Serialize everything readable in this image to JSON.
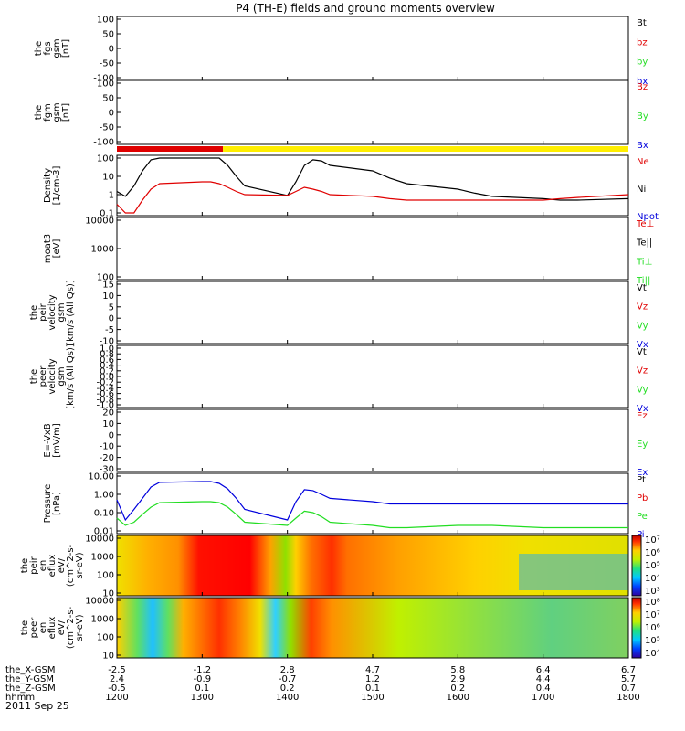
{
  "title": "P4 (TH-E) fields and ground moments overview",
  "date_label": "2011 Sep 25",
  "time_axis": {
    "row_labels": [
      "the_X-GSM",
      "the_Y-GSM",
      "the_Z-GSM",
      "hhmm"
    ],
    "ticks": [
      {
        "x": "-2.5",
        "y": "2.4",
        "z": "-0.5",
        "hhmm": "1200"
      },
      {
        "x": "-1.2",
        "y": "-0.9",
        "z": "0.1",
        "hhmm": "1300"
      },
      {
        "x": "2.8",
        "y": "-0.7",
        "z": "0.2",
        "hhmm": "1400"
      },
      {
        "x": "4.7",
        "y": "1.2",
        "z": "0.1",
        "hhmm": "1500"
      },
      {
        "x": "5.8",
        "y": "2.9",
        "z": "0.2",
        "hhmm": "1600"
      },
      {
        "x": "6.4",
        "y": "4.4",
        "z": "0.4",
        "hhmm": "1700"
      },
      {
        "x": "6.7",
        "y": "5.7",
        "z": "0.7",
        "hhmm": "1800"
      }
    ],
    "range": [
      1200,
      1800
    ]
  },
  "colors": {
    "black": "#000000",
    "red": "#e00000",
    "green": "#22dd22",
    "blue": "#0000dd",
    "yellow": "#ffee00"
  },
  "panels": [
    {
      "ylabel": [
        "the",
        "fgs",
        "gsm",
        "[nT]"
      ],
      "ticks": [
        "100",
        "50",
        "0",
        "-50",
        "-100"
      ],
      "legend": [
        {
          "t": "Bt",
          "c": "black"
        },
        {
          "t": "bz",
          "c": "red"
        },
        {
          "t": "by",
          "c": "green"
        },
        {
          "t": "bx",
          "c": "blue"
        }
      ]
    },
    {
      "ylabel": [
        "the",
        "fgm",
        "gsm",
        "[nT]"
      ],
      "ticks": [
        "100",
        "50",
        "0",
        "-50",
        "-100"
      ],
      "legend": [
        {
          "t": "Bz",
          "c": "red"
        },
        {
          "t": "By",
          "c": "green"
        },
        {
          "t": "Bx",
          "c": "blue"
        }
      ]
    },
    {
      "ylabel": [
        "Density",
        "[1/cm-3]"
      ],
      "ticks": [
        "100",
        "10",
        "1",
        "0.1"
      ],
      "legend": [
        {
          "t": "Ne",
          "c": "red"
        },
        {
          "t": "Ni",
          "c": "black"
        },
        {
          "t": "Npot",
          "c": "blue"
        }
      ]
    },
    {
      "ylabel": [
        "moat3",
        "[eV]"
      ],
      "ticks": [
        "10000",
        "1000",
        "100"
      ],
      "legend": [
        {
          "t": "Te⊥",
          "c": "red"
        },
        {
          "t": "Te||",
          "c": "black"
        },
        {
          "t": "Ti⊥",
          "c": "green"
        },
        {
          "t": "Ti||",
          "c": "green"
        }
      ]
    },
    {
      "ylabel": [
        "the",
        "peir",
        "velocity",
        "gsm",
        "[km/s (All Qs)]"
      ],
      "ticks": [
        "15",
        "10",
        "5",
        "0",
        "-5",
        "-10"
      ],
      "legend": [
        {
          "t": "Vt",
          "c": "black"
        },
        {
          "t": "Vz",
          "c": "red"
        },
        {
          "t": "Vy",
          "c": "green"
        },
        {
          "t": "Vx",
          "c": "blue"
        }
      ]
    },
    {
      "ylabel": [
        "the",
        "peer",
        "velocity",
        "gsm",
        "[km/s (All Qs)]"
      ],
      "ticks": [
        "1.0",
        "0.8",
        "0.6",
        "0.4",
        "0.2",
        "0.0",
        "-0.2",
        "-0.4",
        "-0.6",
        "-0.8",
        "-1.0"
      ],
      "legend": [
        {
          "t": "Vt",
          "c": "black"
        },
        {
          "t": "Vz",
          "c": "red"
        },
        {
          "t": "Vy",
          "c": "green"
        },
        {
          "t": "Vx",
          "c": "blue"
        }
      ]
    },
    {
      "ylabel": [
        "E=-VxB",
        "[mV/m]"
      ],
      "ticks": [
        "20",
        "10",
        "0",
        "-10",
        "-20",
        "-30"
      ],
      "legend": [
        {
          "t": "Ez",
          "c": "red"
        },
        {
          "t": "Ey",
          "c": "green"
        },
        {
          "t": "Ex",
          "c": "blue"
        }
      ]
    },
    {
      "ylabel": [
        "Pressure",
        "[nPa]"
      ],
      "ticks": [
        "10.00",
        "1.00",
        "0.10",
        "0.01"
      ],
      "legend": [
        {
          "t": "Pt",
          "c": "black"
        },
        {
          "t": "Pb",
          "c": "red"
        },
        {
          "t": "Pe",
          "c": "green"
        },
        {
          "t": "Pi",
          "c": "blue"
        }
      ]
    },
    {
      "ylabel": [
        "the",
        "peir",
        "en",
        "eflux",
        "eV/",
        "(cm^2-s-",
        "sr-eV)"
      ],
      "ticks": [
        "10000",
        "1000",
        "100",
        "10"
      ],
      "cbar": [
        "10⁷",
        "10⁶",
        "10⁵",
        "10⁴",
        "10³"
      ]
    },
    {
      "ylabel": [
        "the",
        "peer",
        "en",
        "eflux",
        "eV/",
        "(cm^2-s-",
        "sr-eV)"
      ],
      "ticks": [
        "10000",
        "1000",
        "100",
        "10"
      ],
      "cbar": [
        "10⁸",
        "10⁷",
        "10⁶",
        "10⁵",
        "10⁴"
      ]
    }
  ],
  "chart_data": {
    "type": "line",
    "title": "P4 (TH-E) fields and ground moments overview",
    "x_unit": "hhmm",
    "x": [
      1200,
      1210,
      1220,
      1230,
      1240,
      1250,
      1300,
      1310,
      1320,
      1330,
      1340,
      1350,
      1400,
      1410,
      1420,
      1430,
      1440,
      1450,
      1500,
      1520,
      1540,
      1600,
      1620,
      1640,
      1700,
      1720,
      1740,
      1800
    ],
    "series": [
      {
        "name": "Ni",
        "panel": "Density",
        "values": [
          1.5,
          0.8,
          3,
          20,
          80,
          140,
          150,
          150,
          100,
          40,
          10,
          3,
          0.9,
          5,
          40,
          80,
          70,
          40,
          20,
          8,
          4,
          2,
          1.2,
          0.8,
          0.6,
          0.5,
          0.5,
          0.6
        ]
      },
      {
        "name": "Ne",
        "panel": "Density",
        "values": [
          0.3,
          0.1,
          0.1,
          0.5,
          2,
          4,
          5,
          5,
          4,
          2.5,
          1.5,
          1,
          0.9,
          1.5,
          2.5,
          2,
          1.5,
          1,
          0.8,
          0.6,
          0.5,
          0.5,
          0.5,
          0.5,
          0.5,
          0.6,
          0.7,
          1
        ]
      },
      {
        "name": "Pi",
        "panel": "Pressure",
        "values": [
          0.5,
          0.04,
          0.15,
          0.6,
          2.5,
          4.5,
          5,
          5,
          4,
          2,
          0.6,
          0.15,
          0.04,
          0.4,
          1.8,
          1.6,
          1,
          0.6,
          0.4,
          0.3,
          0.3,
          0.3,
          0.3,
          0.3,
          0.3,
          0.3,
          0.3,
          0.3
        ]
      },
      {
        "name": "Pe",
        "panel": "Pressure",
        "values": [
          0.05,
          0.02,
          0.03,
          0.08,
          0.2,
          0.35,
          0.4,
          0.4,
          0.35,
          0.2,
          0.08,
          0.03,
          0.02,
          0.05,
          0.12,
          0.1,
          0.06,
          0.03,
          0.02,
          0.015,
          0.015,
          0.02,
          0.02,
          0.02,
          0.015,
          0.015,
          0.015,
          0.015
        ]
      }
    ],
    "grid": false
  }
}
